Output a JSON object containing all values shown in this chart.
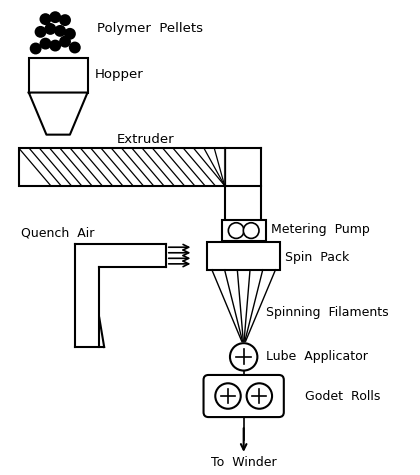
{
  "bg_color": "#ffffff",
  "fg_color": "#000000",
  "labels": {
    "polymer_pellets": "Polymer  Pellets",
    "hopper": "Hopper",
    "extruder": "Extruder",
    "metering_pump": "Metering  Pump",
    "spin_pack": "Spin  Pack",
    "quench_air": "Quench  Air",
    "spinning_filaments": "Spinning  Filaments",
    "lube_applicator": "Lube  Applicator",
    "godet_rolls": "Godet  Rolls",
    "to_winder": "To  Winder"
  }
}
